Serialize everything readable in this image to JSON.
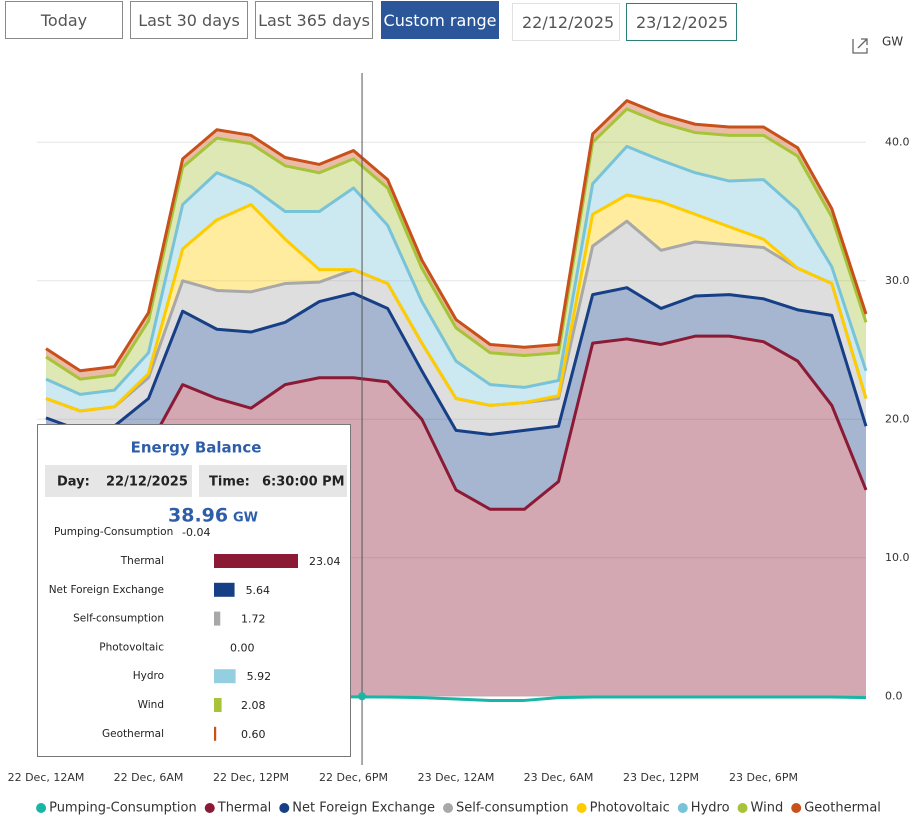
{
  "controls": {
    "buttons": [
      "Today",
      "Last 30 days",
      "Last 365 days",
      "Custom range"
    ],
    "active_button": 3,
    "start_date": "22/12/2025",
    "end_date": "23/12/2025"
  },
  "chart_data": {
    "type": "area",
    "stacked": true,
    "y_unit": "GW",
    "categories": [
      "22 Dec, 12AM",
      null,
      null,
      "22 Dec, 6AM",
      null,
      null,
      "22 Dec, 12PM",
      null,
      null,
      "22 Dec, 6PM",
      null,
      null,
      "23 Dec, 12AM",
      null,
      null,
      "23 Dec, 6AM",
      null,
      null,
      "23 Dec, 12PM",
      null,
      null,
      "23 Dec, 6PM",
      null,
      null,
      null
    ],
    "series": [
      {
        "name": "Pumping-Consumption",
        "color": "#19b5a5",
        "values": [
          0,
          0,
          0,
          0,
          -0.05,
          -0.05,
          -0.05,
          -0.05,
          -0.05,
          -0.04,
          -0.05,
          -0.1,
          -0.2,
          -0.3,
          -0.3,
          -0.1,
          -0.05,
          -0.05,
          -0.05,
          -0.05,
          -0.05,
          -0.05,
          -0.05,
          -0.05,
          -0.1
        ]
      },
      {
        "name": "Thermal",
        "color": "#8b1a35",
        "values": [
          16,
          15.5,
          15.5,
          18,
          22.5,
          21.5,
          20.8,
          22.5,
          23,
          23,
          22.7,
          20,
          14.9,
          13.5,
          13.5,
          15.5,
          25.5,
          25.8,
          25.4,
          26,
          26,
          25.6,
          24.2,
          21,
          14.9
        ]
      },
      {
        "name": "Net Foreign Exchange",
        "color": "#163f85",
        "values": [
          4.1,
          3.7,
          4.0,
          3.5,
          5.3,
          5.0,
          5.5,
          4.5,
          5.5,
          6.1,
          5.3,
          3.5,
          4.3,
          5.4,
          5.7,
          4.0,
          3.5,
          3.7,
          2.6,
          2.9,
          3.0,
          3.1,
          3.7,
          6.5,
          4.6
        ]
      },
      {
        "name": "Self-consumption",
        "color": "#a8a8a8",
        "values": [
          1.4,
          1.4,
          1.4,
          1.5,
          2.2,
          2.8,
          2.9,
          2.8,
          1.4,
          1.7,
          1.8,
          2.0,
          2.3,
          2.1,
          2.0,
          2.0,
          3.5,
          4.8,
          4.2,
          3.9,
          3.6,
          3.7,
          3.0,
          2.3,
          2.0
        ]
      },
      {
        "name": "Photovoltaic",
        "color": "#ffcc00",
        "values": [
          0,
          0,
          0,
          0.3,
          2.3,
          5.1,
          6.3,
          3.2,
          0.9,
          0,
          0,
          0,
          0,
          0,
          0,
          0.2,
          2.3,
          1.9,
          3.5,
          2.0,
          1.3,
          0.6,
          0,
          0,
          0
        ]
      },
      {
        "name": "Hydro",
        "color": "#79c3d9",
        "values": [
          1.4,
          1.2,
          1.2,
          1.5,
          3.2,
          3.4,
          1.3,
          2.0,
          4.2,
          5.9,
          4.2,
          3.0,
          2.7,
          1.5,
          1.1,
          1.1,
          2.2,
          3.5,
          3.0,
          3.0,
          3.3,
          4.3,
          4.2,
          1.2,
          2.0
        ]
      },
      {
        "name": "Wind",
        "color": "#a6c33a",
        "values": [
          1.6,
          1.1,
          1.1,
          2.3,
          2.7,
          2.5,
          3.1,
          3.3,
          2.8,
          2.1,
          2.7,
          2.4,
          2.4,
          2.3,
          2.3,
          2.0,
          3.0,
          2.7,
          2.7,
          2.9,
          3.3,
          3.2,
          3.9,
          3.6,
          3.5
        ]
      },
      {
        "name": "Geothermal",
        "color": "#c8501a",
        "values": [
          0.6,
          0.6,
          0.6,
          0.6,
          0.6,
          0.6,
          0.6,
          0.6,
          0.6,
          0.6,
          0.6,
          0.6,
          0.6,
          0.6,
          0.6,
          0.6,
          0.6,
          0.6,
          0.6,
          0.6,
          0.6,
          0.6,
          0.6,
          0.6,
          0.6
        ]
      }
    ],
    "ylim": [
      -4.6,
      45
    ],
    "yticks": [
      {
        "value": 0,
        "label": "0.0"
      },
      {
        "value": 10,
        "label": "10.0"
      },
      {
        "value": 20,
        "label": "20.0"
      },
      {
        "value": 30,
        "label": "30.0"
      },
      {
        "value": 40,
        "label": "40.0"
      }
    ],
    "grid": true,
    "legend": "bottom"
  },
  "tooltip": {
    "title": "Energy Balance",
    "day_label": "Day:",
    "day": "22/12/2025",
    "time_label": "Time:",
    "time": "6:30:00 PM",
    "total": 38.96,
    "unit": "GW",
    "rows": [
      {
        "name": "Pumping-Consumption",
        "value": -0.04,
        "value_label": "-0.04"
      },
      {
        "name": "Thermal",
        "value": 23.04,
        "value_label": "23.04"
      },
      {
        "name": "Net Foreign Exchange",
        "value": 5.64,
        "value_label": "5.64"
      },
      {
        "name": "Self-consumption",
        "value": 1.72,
        "value_label": "1.72"
      },
      {
        "name": "Photovoltaic",
        "value": 0,
        "value_label": "0.00"
      },
      {
        "name": "Hydro",
        "value": 5.92,
        "value_label": "5.92"
      },
      {
        "name": "Wind",
        "value": 2.08,
        "value_label": "2.08"
      },
      {
        "name": "Geothermal",
        "value": 0.6,
        "value_label": "0.60"
      }
    ]
  }
}
